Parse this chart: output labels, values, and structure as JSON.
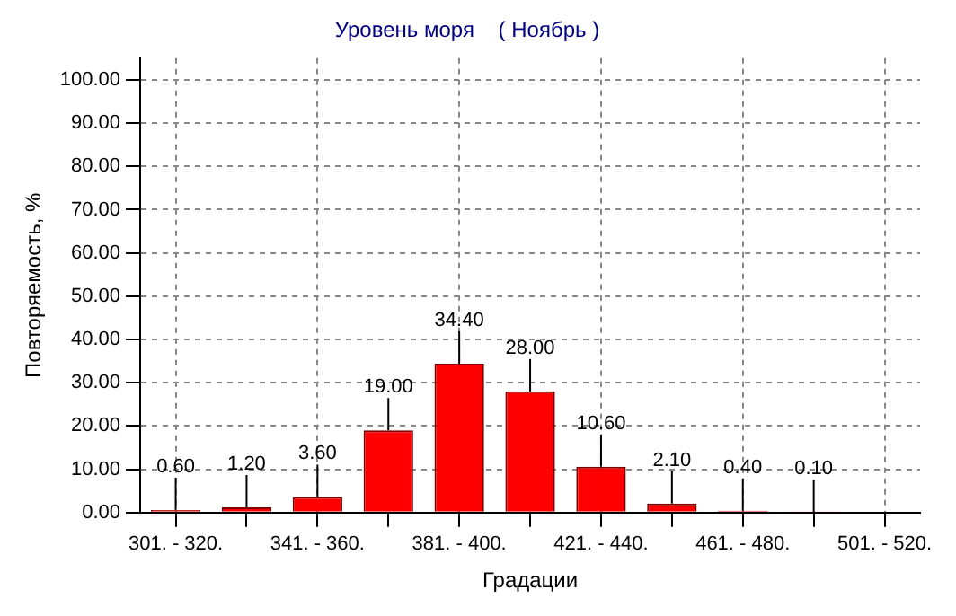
{
  "chart_data": {
    "type": "bar",
    "title": "Уровень моря    ( Ноябрь )",
    "xlabel": "Градации",
    "ylabel": "Повторяемость, %",
    "categories": [
      "301. - 320.",
      null,
      "341. - 360.",
      null,
      "381. - 400.",
      null,
      "421. - 440.",
      null,
      "461. - 480.",
      null,
      "501. - 520."
    ],
    "values": [
      0.6,
      1.2,
      3.6,
      19.0,
      34.4,
      28.0,
      10.6,
      2.1,
      0.4,
      0.1,
      null
    ],
    "value_labels": [
      "0.60",
      "1.20",
      "3.60",
      "19.00",
      "34.40",
      "28.00",
      "10.60",
      "2.10",
      "0.40",
      "0.10",
      null
    ],
    "color": "#ff0000",
    "ylim": [
      0,
      105
    ],
    "yticks": [
      {
        "value": 0,
        "label": "0.00"
      },
      {
        "value": 10,
        "label": "10.00"
      },
      {
        "value": 20,
        "label": "20.00"
      },
      {
        "value": 30,
        "label": "30.00"
      },
      {
        "value": 40,
        "label": "40.00"
      },
      {
        "value": 50,
        "label": "50.00"
      },
      {
        "value": 60,
        "label": "60.00"
      },
      {
        "value": 70,
        "label": "70.00"
      },
      {
        "value": 80,
        "label": "80.00"
      },
      {
        "value": 90,
        "label": "90.00"
      },
      {
        "value": 100,
        "label": "100.00"
      }
    ],
    "grid": true
  }
}
